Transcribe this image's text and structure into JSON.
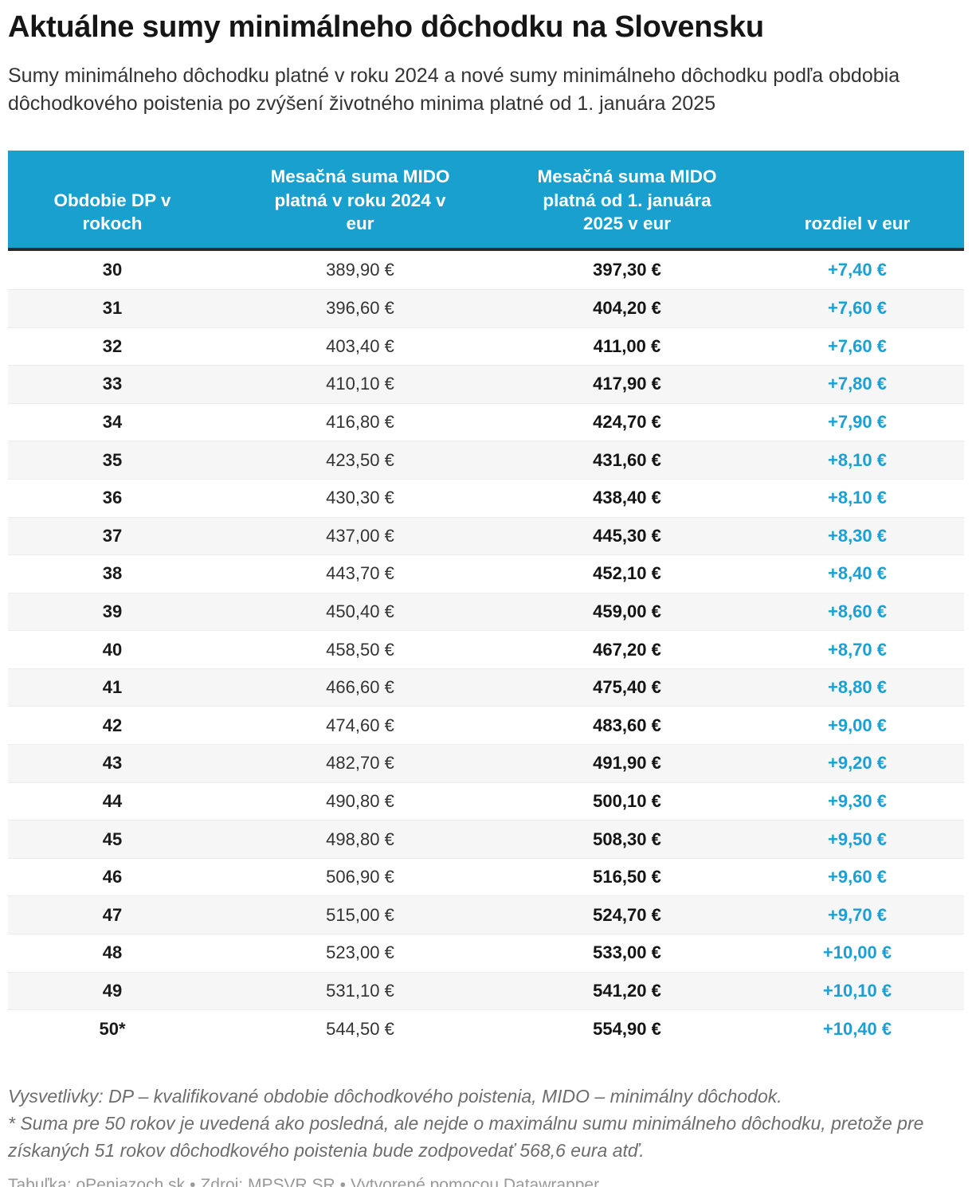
{
  "header": {
    "title": "Aktuálne sumy minimálneho dôchodku na Slovensku",
    "subtitle": "Sumy minimálneho dôchodku platné v roku 2024 a nové sumy minimálneho dôchodku podľa obdobia dôchodkového poistenia po zvýšení životného minima platné od 1. januára 2025"
  },
  "colors": {
    "header_bg": "#1aa0ce",
    "diff_text": "#1aa0d5",
    "alt_row_bg": "#f6f6f6",
    "header_underline": "#2b2b2b"
  },
  "chart_data": {
    "type": "table",
    "title": "Aktuálne sumy minimálneho dôchodku na Slovensku",
    "subtitle": "Sumy minimálneho dôchodku platné v roku 2024 a nové sumy minimálneho dôchodku podľa obdobia dôchodkového poistenia po zvýšení životného minima platné od 1. januára 2025",
    "columns": [
      "Obdobie DP v rokoch",
      "Mesačná suma MIDO platná v roku 2024 v eur",
      "Mesačná suma MIDO platná od 1. januára 2025 v eur",
      "rozdiel v eur"
    ],
    "rows": [
      {
        "years": "30",
        "sum_2024": "389,90 €",
        "sum_2025": "397,30 €",
        "diff": "+7,40 €"
      },
      {
        "years": "31",
        "sum_2024": "396,60 €",
        "sum_2025": "404,20 €",
        "diff": "+7,60 €"
      },
      {
        "years": "32",
        "sum_2024": "403,40 €",
        "sum_2025": "411,00 €",
        "diff": "+7,60 €"
      },
      {
        "years": "33",
        "sum_2024": "410,10 €",
        "sum_2025": "417,90 €",
        "diff": "+7,80 €"
      },
      {
        "years": "34",
        "sum_2024": "416,80 €",
        "sum_2025": "424,70 €",
        "diff": "+7,90 €"
      },
      {
        "years": "35",
        "sum_2024": "423,50 €",
        "sum_2025": "431,60 €",
        "diff": "+8,10 €"
      },
      {
        "years": "36",
        "sum_2024": "430,30 €",
        "sum_2025": "438,40 €",
        "diff": "+8,10 €"
      },
      {
        "years": "37",
        "sum_2024": "437,00 €",
        "sum_2025": "445,30 €",
        "diff": "+8,30 €"
      },
      {
        "years": "38",
        "sum_2024": "443,70 €",
        "sum_2025": "452,10 €",
        "diff": "+8,40 €"
      },
      {
        "years": "39",
        "sum_2024": "450,40 €",
        "sum_2025": "459,00 €",
        "diff": "+8,60 €"
      },
      {
        "years": "40",
        "sum_2024": "458,50 €",
        "sum_2025": "467,20 €",
        "diff": "+8,70 €"
      },
      {
        "years": "41",
        "sum_2024": "466,60 €",
        "sum_2025": "475,40 €",
        "diff": "+8,80 €"
      },
      {
        "years": "42",
        "sum_2024": "474,60 €",
        "sum_2025": "483,60 €",
        "diff": "+9,00 €"
      },
      {
        "years": "43",
        "sum_2024": "482,70 €",
        "sum_2025": "491,90 €",
        "diff": "+9,20 €"
      },
      {
        "years": "44",
        "sum_2024": "490,80 €",
        "sum_2025": "500,10 €",
        "diff": "+9,30 €"
      },
      {
        "years": "45",
        "sum_2024": "498,80 €",
        "sum_2025": "508,30 €",
        "diff": "+9,50 €"
      },
      {
        "years": "46",
        "sum_2024": "506,90 €",
        "sum_2025": "516,50 €",
        "diff": "+9,60 €"
      },
      {
        "years": "47",
        "sum_2024": "515,00 €",
        "sum_2025": "524,70 €",
        "diff": "+9,70 €"
      },
      {
        "years": "48",
        "sum_2024": "523,00 €",
        "sum_2025": "533,00 €",
        "diff": "+10,00 €"
      },
      {
        "years": "49",
        "sum_2024": "531,10 €",
        "sum_2025": "541,20 €",
        "diff": "+10,10 €"
      },
      {
        "years": "50*",
        "sum_2024": "544,50 €",
        "sum_2025": "554,90 €",
        "diff": "+10,40 €"
      }
    ],
    "layout": {
      "column_alignment": "center",
      "striped_rows": true,
      "header_background": "#1aa0ce"
    }
  },
  "footer": {
    "note_explanations": "Vysvetlivky: DP – kvalifikované obdobie dôchodkového poistenia, MIDO – minimálny dôchodok.",
    "note_asterisk": "* Suma pre 50 rokov je uvedená ako posledná, ale nejde o maximálnu sumu minimálneho dôchodku, pretože pre získaných 51 rokov dôchodkového poistenia bude zodpovedať 568,6 eura atď.",
    "attribution": {
      "table_credit": "Tabuľka: oPeniazoch.sk",
      "source_credit": "Zdroj: MPSVR SR",
      "tool_credit": "Vytvorené pomocou Datawrapper",
      "separator": "•"
    }
  }
}
